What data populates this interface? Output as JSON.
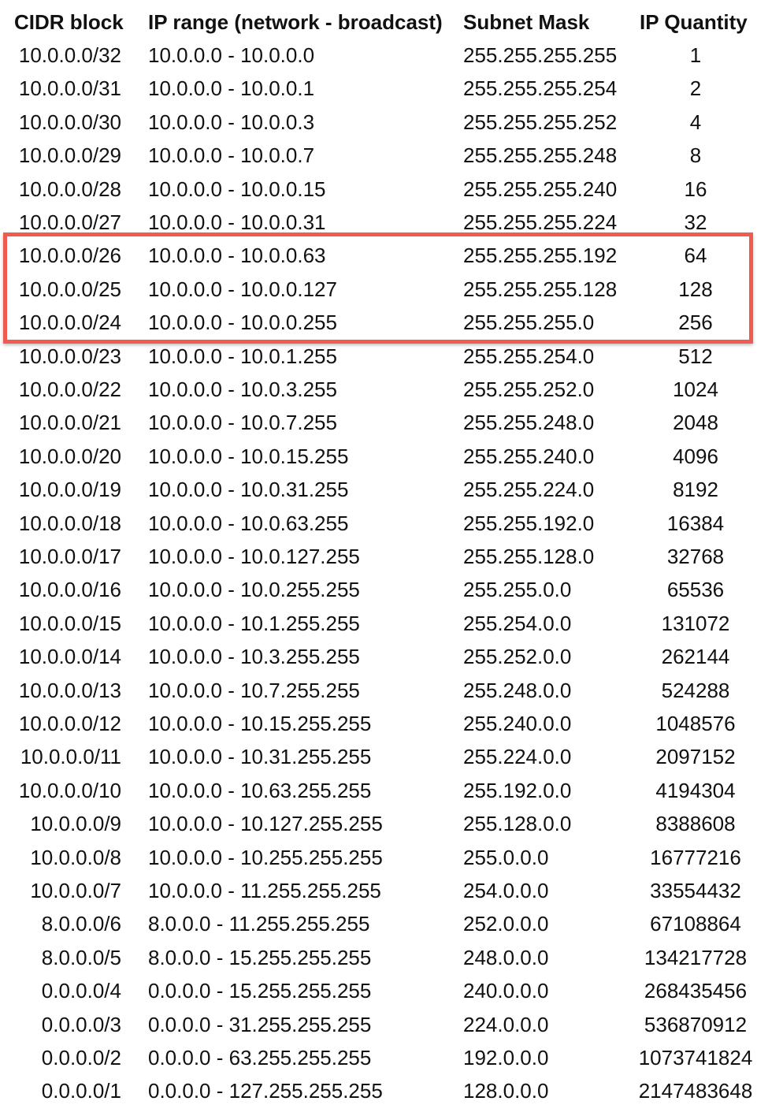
{
  "table": {
    "headers": {
      "cidr": "CIDR block",
      "range": "IP range (network - broadcast)",
      "mask": "Subnet Mask",
      "quantity": "IP Quantity"
    },
    "highlight_color": "#ef5b50",
    "highlighted_rows": [
      "10.0.0.0/26",
      "10.0.0.0/25",
      "10.0.0.0/24"
    ],
    "rows": [
      {
        "cidr": "10.0.0.0/32",
        "range": "10.0.0.0 - 10.0.0.0",
        "mask": "255.255.255.255",
        "quantity": "1"
      },
      {
        "cidr": "10.0.0.0/31",
        "range": "10.0.0.0 - 10.0.0.1",
        "mask": "255.255.255.254",
        "quantity": "2"
      },
      {
        "cidr": "10.0.0.0/30",
        "range": "10.0.0.0 - 10.0.0.3",
        "mask": "255.255.255.252",
        "quantity": "4"
      },
      {
        "cidr": "10.0.0.0/29",
        "range": "10.0.0.0 - 10.0.0.7",
        "mask": "255.255.255.248",
        "quantity": "8"
      },
      {
        "cidr": "10.0.0.0/28",
        "range": "10.0.0.0 - 10.0.0.15",
        "mask": "255.255.255.240",
        "quantity": "16"
      },
      {
        "cidr": "10.0.0.0/27",
        "range": "10.0.0.0 - 10.0.0.31",
        "mask": "255.255.255.224",
        "quantity": "32"
      },
      {
        "cidr": "10.0.0.0/26",
        "range": "10.0.0.0 - 10.0.0.63",
        "mask": "255.255.255.192",
        "quantity": "64"
      },
      {
        "cidr": "10.0.0.0/25",
        "range": "10.0.0.0 - 10.0.0.127",
        "mask": "255.255.255.128",
        "quantity": "128"
      },
      {
        "cidr": "10.0.0.0/24",
        "range": "10.0.0.0 - 10.0.0.255",
        "mask": "255.255.255.0",
        "quantity": "256"
      },
      {
        "cidr": "10.0.0.0/23",
        "range": "10.0.0.0 - 10.0.1.255",
        "mask": "255.255.254.0",
        "quantity": "512"
      },
      {
        "cidr": "10.0.0.0/22",
        "range": "10.0.0.0 - 10.0.3.255",
        "mask": "255.255.252.0",
        "quantity": "1024"
      },
      {
        "cidr": "10.0.0.0/21",
        "range": "10.0.0.0 - 10.0.7.255",
        "mask": "255.255.248.0",
        "quantity": "2048"
      },
      {
        "cidr": "10.0.0.0/20",
        "range": "10.0.0.0 - 10.0.15.255",
        "mask": "255.255.240.0",
        "quantity": "4096"
      },
      {
        "cidr": "10.0.0.0/19",
        "range": "10.0.0.0 - 10.0.31.255",
        "mask": "255.255.224.0",
        "quantity": "8192"
      },
      {
        "cidr": "10.0.0.0/18",
        "range": "10.0.0.0 - 10.0.63.255",
        "mask": "255.255.192.0",
        "quantity": "16384"
      },
      {
        "cidr": "10.0.0.0/17",
        "range": "10.0.0.0 - 10.0.127.255",
        "mask": "255.255.128.0",
        "quantity": "32768"
      },
      {
        "cidr": "10.0.0.0/16",
        "range": "10.0.0.0 - 10.0.255.255",
        "mask": "255.255.0.0",
        "quantity": "65536"
      },
      {
        "cidr": "10.0.0.0/15",
        "range": "10.0.0.0 - 10.1.255.255",
        "mask": "255.254.0.0",
        "quantity": "131072"
      },
      {
        "cidr": "10.0.0.0/14",
        "range": "10.0.0.0 - 10.3.255.255",
        "mask": "255.252.0.0",
        "quantity": "262144"
      },
      {
        "cidr": "10.0.0.0/13",
        "range": "10.0.0.0 - 10.7.255.255",
        "mask": "255.248.0.0",
        "quantity": "524288"
      },
      {
        "cidr": "10.0.0.0/12",
        "range": "10.0.0.0 - 10.15.255.255",
        "mask": "255.240.0.0",
        "quantity": "1048576"
      },
      {
        "cidr": "10.0.0.0/11",
        "range": "10.0.0.0 - 10.31.255.255",
        "mask": "255.224.0.0",
        "quantity": "2097152"
      },
      {
        "cidr": "10.0.0.0/10",
        "range": "10.0.0.0 - 10.63.255.255",
        "mask": "255.192.0.0",
        "quantity": "4194304"
      },
      {
        "cidr": "10.0.0.0/9",
        "range": "10.0.0.0 - 10.127.255.255",
        "mask": "255.128.0.0",
        "quantity": "8388608"
      },
      {
        "cidr": "10.0.0.0/8",
        "range": "10.0.0.0 - 10.255.255.255",
        "mask": "255.0.0.0",
        "quantity": "16777216"
      },
      {
        "cidr": "10.0.0.0/7",
        "range": "10.0.0.0 - 11.255.255.255",
        "mask": "254.0.0.0",
        "quantity": "33554432"
      },
      {
        "cidr": "8.0.0.0/6",
        "range": "8.0.0.0 - 11.255.255.255",
        "mask": "252.0.0.0",
        "quantity": "67108864"
      },
      {
        "cidr": "8.0.0.0/5",
        "range": "8.0.0.0 - 15.255.255.255",
        "mask": "248.0.0.0",
        "quantity": "134217728"
      },
      {
        "cidr": "0.0.0.0/4",
        "range": "0.0.0.0 - 15.255.255.255",
        "mask": "240.0.0.0",
        "quantity": "268435456"
      },
      {
        "cidr": "0.0.0.0/3",
        "range": "0.0.0.0 - 31.255.255.255",
        "mask": "224.0.0.0",
        "quantity": "536870912"
      },
      {
        "cidr": "0.0.0.0/2",
        "range": "0.0.0.0 - 63.255.255.255",
        "mask": "192.0.0.0",
        "quantity": "1073741824"
      },
      {
        "cidr": "0.0.0.0/1",
        "range": "0.0.0.0 - 127.255.255.255",
        "mask": "128.0.0.0",
        "quantity": "2147483648"
      }
    ]
  }
}
